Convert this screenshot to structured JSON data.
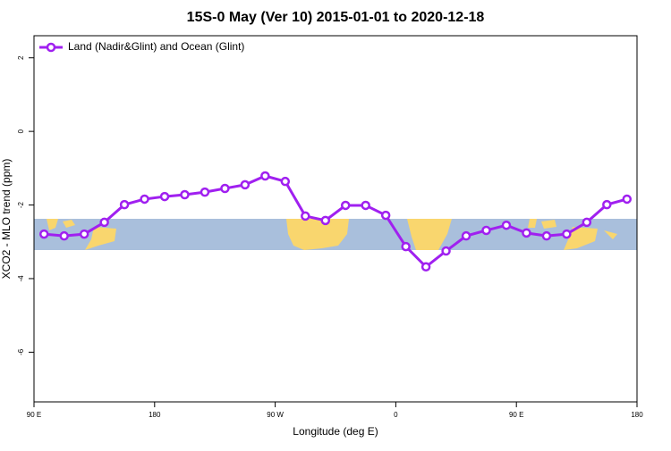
{
  "chart_data": {
    "type": "line",
    "title": "15S-0 May (Ver 10)   2015-01-01 to 2020-12-18",
    "x_label": "Longitude (deg E)",
    "y_label": "XCO2 - MLO trend (ppm)",
    "x": [
      97.5,
      112.5,
      127.5,
      142.5,
      157.5,
      172.5,
      187.5,
      202.5,
      217.5,
      232.5,
      247.5,
      262.5,
      277.5,
      292.5,
      307.5,
      322.5,
      337.5,
      352.5,
      367.5,
      382.5,
      397.5,
      412.5,
      427.5,
      442.5,
      457.5,
      472.5,
      487.5,
      502.5,
      517.5,
      532.5
    ],
    "series": [
      {
        "name": "Land (Nadir&Glint) and Ocean (Glint)",
        "color": "#a020f0",
        "values": [
          -2.79,
          -2.84,
          -2.79,
          -2.47,
          -1.99,
          -1.84,
          -1.77,
          -1.72,
          -1.65,
          -1.55,
          -1.45,
          -1.21,
          -1.36,
          -2.3,
          -2.42,
          -2.01,
          -2.01,
          -2.28,
          -3.13,
          -3.68,
          -3.25,
          -2.84,
          -2.69,
          -2.55,
          -2.76,
          -2.84,
          -2.79,
          -2.47,
          -1.99,
          -1.84
        ]
      }
    ],
    "xlim": [
      90,
      540
    ],
    "ylim": [
      2.6,
      -7.35
    ],
    "xticks": [
      {
        "value": 90,
        "label": "90 E"
      },
      180,
      {
        "value": 270,
        "label": "90 W"
      },
      {
        "value": 360,
        "label": "0"
      },
      {
        "value": 450,
        "label": "90 E"
      },
      {
        "value": 540,
        "label": "180"
      }
    ],
    "yticks": [
      2,
      0,
      -2,
      -4,
      -6
    ],
    "legend": "top-left"
  }
}
